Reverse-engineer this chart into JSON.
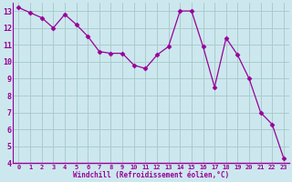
{
  "x": [
    0,
    1,
    2,
    3,
    4,
    5,
    6,
    7,
    8,
    9,
    10,
    11,
    12,
    13,
    14,
    15,
    16,
    17,
    18,
    19,
    20,
    21,
    22,
    23
  ],
  "y": [
    13.2,
    12.9,
    12.6,
    12.0,
    12.8,
    12.2,
    11.5,
    10.6,
    10.5,
    10.5,
    9.8,
    9.6,
    10.4,
    10.9,
    13.0,
    13.0,
    10.9,
    8.5,
    11.4,
    10.4,
    9.0,
    7.0,
    6.3,
    4.3
  ],
  "line_color": "#990099",
  "marker": "D",
  "marker_size": 2.5,
  "bg_color": "#cce8ee",
  "grid_color": "#aacccc",
  "xlabel": "Windchill (Refroidissement éolien,°C)",
  "xlabel_color": "#990099",
  "tick_color": "#990099",
  "label_bg": "#9900aa",
  "ylim": [
    4,
    13.5
  ],
  "xlim": [
    -0.5,
    23.5
  ],
  "yticks": [
    4,
    5,
    6,
    7,
    8,
    9,
    10,
    11,
    12,
    13
  ],
  "xticks": [
    0,
    1,
    2,
    3,
    4,
    5,
    6,
    7,
    8,
    9,
    10,
    11,
    12,
    13,
    14,
    15,
    16,
    17,
    18,
    19,
    20,
    21,
    22,
    23
  ]
}
